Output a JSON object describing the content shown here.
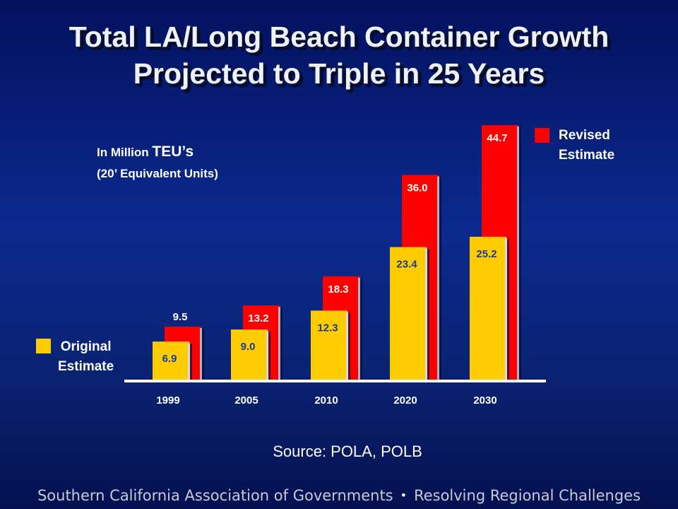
{
  "slide": {
    "title_line1": "Total LA/Long Beach Container Growth",
    "title_line2": "Projected to Triple in 25 Years",
    "units_line1_prefix": "In Million ",
    "units_line1_big": "TEU’s",
    "units_line2": "(20’ Equivalent Units)",
    "legend_revised_line1": "Revised",
    "legend_revised_line2": "Estimate",
    "legend_original_line1": "Original",
    "legend_original_line2": "Estimate",
    "source": "Source: POLA, POLB",
    "footer_left": "Southern California Association of Governments",
    "footer_dot": "•",
    "footer_right": "Resolving Regional Challenges"
  },
  "colors": {
    "revised": "#ff0000",
    "original": "#ffcc00",
    "revised_label": "#ffffff",
    "original_label": "#1a3a9a",
    "axis": "#ffffff"
  },
  "chart_data": {
    "type": "bar",
    "categories": [
      "1999",
      "2005",
      "2010",
      "2020",
      "2030"
    ],
    "series": [
      {
        "name": "Revised Estimate",
        "values": [
          9.5,
          13.2,
          18.3,
          36.0,
          44.7
        ]
      },
      {
        "name": "Original Estimate",
        "values": [
          6.9,
          9.0,
          12.3,
          23.4,
          25.2
        ]
      }
    ],
    "value_labels": {
      "revised": [
        "9.5",
        "13.2",
        "18.3",
        "36.0",
        "44.7"
      ],
      "original": [
        "6.9",
        "9.0",
        "12.3",
        "23.4",
        "25.2"
      ]
    },
    "ylim": [
      0,
      49
    ],
    "grid": false,
    "legend": "split: revised top-right, original left"
  }
}
